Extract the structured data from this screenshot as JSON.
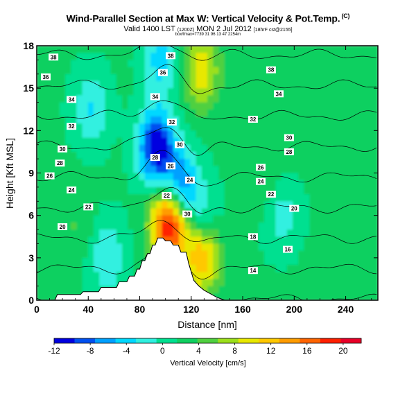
{
  "header": {
    "title": "Wind-Parallel Section at Max W: Vertical Velocity & Pot.Temp.",
    "copyright": "(C)",
    "valid_prefix": "Valid 1400 LST",
    "valid_utc": "(1200Z)",
    "valid_date": "MON 2 Jul 2012",
    "valid_model": "[18hrF cst@2155]",
    "line3": "box/fmax=7739 31 96 13 47 2254m"
  },
  "chart_data": {
    "type": "heatmap",
    "xlabel": "Distance [nm]",
    "ylabel": "Height [Kft MSL]",
    "xlim": [
      0,
      265
    ],
    "ylim": [
      0,
      18
    ],
    "x_ticks": [
      0,
      40,
      80,
      120,
      160,
      200,
      240
    ],
    "y_ticks": [
      0,
      3,
      6,
      9,
      12,
      15,
      18
    ],
    "colorbar": {
      "label": "Vertical Velocity [cm/s]",
      "range": [
        -12,
        22
      ],
      "tick_values": [
        -12,
        -8,
        -4,
        0,
        4,
        8,
        12,
        16,
        20
      ],
      "tick_labels": [
        "-12",
        "-8",
        "-4",
        "0",
        "4",
        "8",
        "12",
        "16",
        "20"
      ],
      "colors": [
        "#0000e0",
        "#0050f0",
        "#00a0ff",
        "#00d8ff",
        "#30f0e0",
        "#00e090",
        "#10d060",
        "#50d040",
        "#9ce01c",
        "#e8e800",
        "#ffc800",
        "#ff9c00",
        "#ff6400",
        "#ff2000",
        "#e80028"
      ]
    },
    "velocity_features": [
      {
        "x": 93,
        "y": 10.8,
        "value": -12
      },
      {
        "x": 112,
        "y": 8.0,
        "value": -8
      },
      {
        "x": 103,
        "y": 5.4,
        "value": 21
      },
      {
        "x": 128,
        "y": 3.2,
        "value": 14
      },
      {
        "x": 96,
        "y": 17.0,
        "value": -4
      },
      {
        "x": 128,
        "y": 16.2,
        "value": 10
      },
      {
        "x": 128,
        "y": 5.5,
        "value": -3
      },
      {
        "x": 55,
        "y": 3.0,
        "value": -3
      },
      {
        "x": 42,
        "y": 13.5,
        "value": -3
      },
      {
        "x": 190,
        "y": 6.0,
        "value": -2
      },
      {
        "x": 30,
        "y": 5.2,
        "value": 4
      },
      {
        "x": 178,
        "y": 8.2,
        "value": 4
      },
      {
        "x": 225,
        "y": 3.5,
        "value": 2
      }
    ],
    "terrain": [
      [
        0,
        0
      ],
      [
        14,
        0
      ],
      [
        16,
        0.4
      ],
      [
        34,
        0.4
      ],
      [
        36,
        0.6
      ],
      [
        48,
        0.6
      ],
      [
        50,
        0.9
      ],
      [
        62,
        0.9
      ],
      [
        64,
        1.3
      ],
      [
        70,
        1.3
      ],
      [
        72,
        1.7
      ],
      [
        76,
        1.7
      ],
      [
        78,
        2.2
      ],
      [
        80,
        2.2
      ],
      [
        82,
        2.8
      ],
      [
        84,
        2.8
      ],
      [
        86,
        3.3
      ],
      [
        88,
        3.3
      ],
      [
        90,
        3.9
      ],
      [
        92,
        3.9
      ],
      [
        94,
        4.4
      ],
      [
        98,
        4.4
      ],
      [
        100,
        4.2
      ],
      [
        104,
        4.2
      ],
      [
        106,
        3.9
      ],
      [
        110,
        3.9
      ],
      [
        112,
        3.4
      ],
      [
        116,
        3.4
      ],
      [
        118,
        2.6
      ],
      [
        120,
        2.0
      ],
      [
        122,
        1.4
      ],
      [
        126,
        1.0
      ],
      [
        130,
        0.7
      ],
      [
        136,
        0.4
      ],
      [
        140,
        0.2
      ],
      [
        146,
        0
      ],
      [
        265,
        0
      ]
    ],
    "contour_levels": [
      14,
      16,
      18,
      20,
      22,
      24,
      26,
      28,
      30,
      32,
      34,
      36,
      38
    ],
    "contour_labels": [
      {
        "text": "38",
        "x": 13,
        "y": 17.2
      },
      {
        "text": "36",
        "x": 7,
        "y": 15.8
      },
      {
        "text": "34",
        "x": 27,
        "y": 14.2
      },
      {
        "text": "32",
        "x": 27,
        "y": 12.3
      },
      {
        "text": "30",
        "x": 20,
        "y": 10.7
      },
      {
        "text": "28",
        "x": 18,
        "y": 9.7
      },
      {
        "text": "26",
        "x": 10,
        "y": 8.8
      },
      {
        "text": "24",
        "x": 27,
        "y": 7.8
      },
      {
        "text": "22",
        "x": 40,
        "y": 6.6
      },
      {
        "text": "20",
        "x": 20,
        "y": 5.2
      },
      {
        "text": "38",
        "x": 104,
        "y": 17.3
      },
      {
        "text": "36",
        "x": 98,
        "y": 16.1
      },
      {
        "text": "34",
        "x": 92,
        "y": 14.4
      },
      {
        "text": "32",
        "x": 105,
        "y": 12.6
      },
      {
        "text": "30",
        "x": 111,
        "y": 11.0
      },
      {
        "text": "28",
        "x": 92,
        "y": 10.1
      },
      {
        "text": "26",
        "x": 104,
        "y": 9.5
      },
      {
        "text": "24",
        "x": 119,
        "y": 8.5
      },
      {
        "text": "22",
        "x": 101,
        "y": 7.4
      },
      {
        "text": "30",
        "x": 117,
        "y": 6.1
      },
      {
        "text": "38",
        "x": 182,
        "y": 16.3
      },
      {
        "text": "34",
        "x": 188,
        "y": 14.6
      },
      {
        "text": "32",
        "x": 168,
        "y": 12.8
      },
      {
        "text": "30",
        "x": 196,
        "y": 11.5
      },
      {
        "text": "28",
        "x": 196,
        "y": 10.5
      },
      {
        "text": "26",
        "x": 174,
        "y": 9.4
      },
      {
        "text": "24",
        "x": 174,
        "y": 8.4
      },
      {
        "text": "22",
        "x": 182,
        "y": 7.5
      },
      {
        "text": "20",
        "x": 200,
        "y": 6.5
      },
      {
        "text": "18",
        "x": 168,
        "y": 4.5
      },
      {
        "text": "16",
        "x": 195,
        "y": 3.6
      },
      {
        "text": "14",
        "x": 168,
        "y": 2.1
      }
    ]
  }
}
